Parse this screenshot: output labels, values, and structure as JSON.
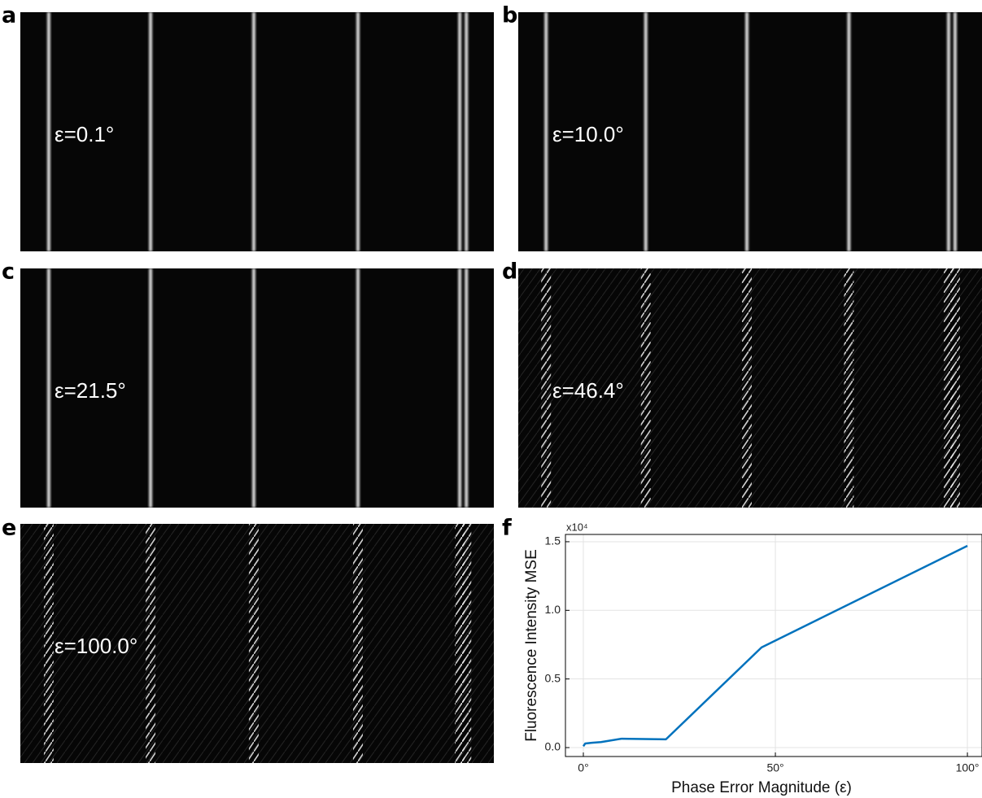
{
  "panels": [
    {
      "label": "a",
      "annotation": "ε=0.1°"
    },
    {
      "label": "b",
      "annotation": "ε=10.0°"
    },
    {
      "label": "c",
      "annotation": "ε=21.5°"
    },
    {
      "label": "d",
      "annotation": "ε=46.4°"
    },
    {
      "label": "e",
      "annotation": "ε=100.0°"
    }
  ],
  "chart_data": {
    "type": "line",
    "panel_label": "f",
    "x_label": "Phase Error Magnitude (ε)",
    "y_label": "Fluorescence Intensity MSE",
    "y_multiplier": "x10⁴",
    "x": [
      0,
      0.5,
      2.2,
      4.6,
      10,
      21.5,
      46.4,
      100
    ],
    "values": [
      0.01,
      0.03,
      0.035,
      0.04,
      0.065,
      0.06,
      0.73,
      1.47
    ],
    "color": "#0072bd",
    "xlim": [
      -4.66,
      103.8
    ],
    "ylim": [
      -0.065,
      1.553
    ],
    "xticks": [
      {
        "value": 0,
        "label": "0°"
      },
      {
        "value": 50,
        "label": "50°"
      },
      {
        "value": 100,
        "label": "100°"
      }
    ],
    "yticks": [
      {
        "value": 0,
        "label": "0.0"
      },
      0.5,
      {
        "value": 1,
        "label": "1.0"
      },
      1.5
    ],
    "grid": true
  }
}
